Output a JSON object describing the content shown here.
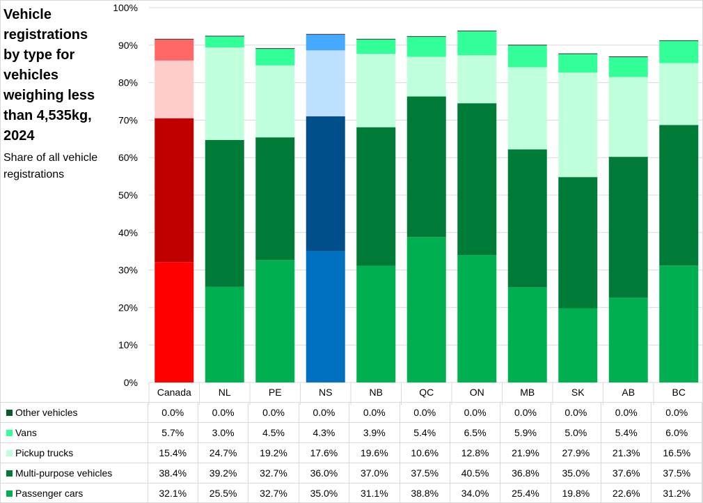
{
  "chart_data": {
    "type": "bar",
    "stacked": true,
    "title": "Vehicle registrations by type for vehicles weighing less than 4,535kg, 2024",
    "subtitle": "Share of all vehicle registrations",
    "categories": [
      "Canada",
      "NL",
      "PE",
      "NS",
      "NB",
      "QC",
      "ON",
      "MB",
      "SK",
      "AB",
      "BC"
    ],
    "ylim": [
      0,
      100
    ],
    "yticks": [
      "0%",
      "10%",
      "20%",
      "30%",
      "40%",
      "50%",
      "60%",
      "70%",
      "80%",
      "90%",
      "100%"
    ],
    "grid": true,
    "series": [
      {
        "name": "Passenger cars",
        "color": "#00b050",
        "values": [
          32.1,
          25.5,
          32.7,
          35.0,
          31.1,
          38.8,
          34.0,
          25.4,
          19.8,
          22.6,
          31.2
        ],
        "labels": [
          "32.1%",
          "25.5%",
          "32.7%",
          "35.0%",
          "31.1%",
          "38.8%",
          "34.0%",
          "25.4%",
          "19.8%",
          "22.6%",
          "31.2%"
        ]
      },
      {
        "name": "Multi-purpose vehicles",
        "color": "#007a37",
        "values": [
          38.4,
          39.2,
          32.7,
          36.0,
          37.0,
          37.5,
          40.5,
          36.8,
          35.0,
          37.6,
          37.5
        ],
        "labels": [
          "38.4%",
          "39.2%",
          "32.7%",
          "36.0%",
          "37.0%",
          "37.5%",
          "40.5%",
          "36.8%",
          "35.0%",
          "37.6%",
          "37.5%"
        ]
      },
      {
        "name": "Pickup trucks",
        "color": "#c0ffdc",
        "values": [
          15.4,
          24.7,
          19.2,
          17.6,
          19.6,
          10.6,
          12.8,
          21.9,
          27.9,
          21.3,
          16.5
        ],
        "labels": [
          "15.4%",
          "24.7%",
          "19.2%",
          "17.6%",
          "19.6%",
          "10.6%",
          "12.8%",
          "21.9%",
          "27.9%",
          "21.3%",
          "16.5%"
        ]
      },
      {
        "name": "Vans",
        "color": "#33ff99",
        "values": [
          5.7,
          3.0,
          4.5,
          4.3,
          3.9,
          5.4,
          6.5,
          5.9,
          5.0,
          5.4,
          6.0
        ],
        "labels": [
          "5.7%",
          "3.0%",
          "4.5%",
          "4.3%",
          "3.9%",
          "5.4%",
          "6.5%",
          "5.9%",
          "5.0%",
          "5.4%",
          "6.0%"
        ]
      },
      {
        "name": "Other vehicles",
        "color": "#0b5a2a",
        "values": [
          0,
          0,
          0,
          0,
          0,
          0,
          0,
          0,
          0,
          0,
          0
        ],
        "labels": [
          "0.0%",
          "0.0%",
          "0.0%",
          "0.0%",
          "0.0%",
          "0.0%",
          "0.0%",
          "0.0%",
          "0.0%",
          "0.0%",
          "0.0%"
        ]
      }
    ],
    "highlight_colors": {
      "Canada": [
        "#ff0000",
        "#c00000",
        "#ffcccc",
        "#ff6666",
        "#7f0000"
      ],
      "NS": [
        "#0070c0",
        "#004f8a",
        "#bde0ff",
        "#45aaff",
        "#002a4a"
      ]
    }
  }
}
